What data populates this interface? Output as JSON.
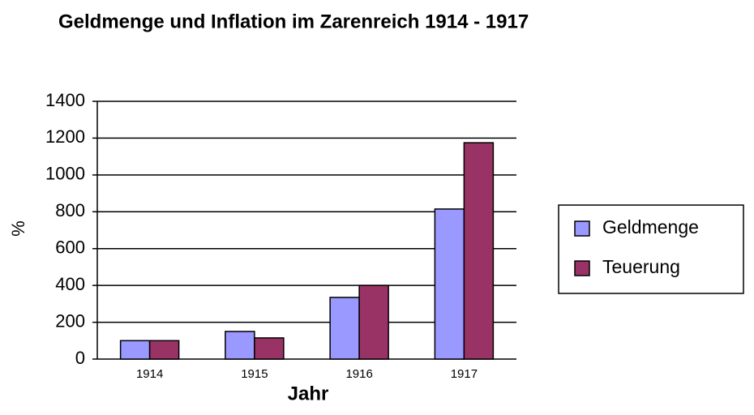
{
  "chart_data": {
    "type": "bar",
    "title": "Geldmenge und Inflation im Zarenreich 1914 - 1917",
    "x_label": "Jahr",
    "y_label": "%",
    "categories": [
      "1914",
      "1915",
      "1916",
      "1917"
    ],
    "series": [
      {
        "name": "Geldmenge",
        "color": "#9999ff",
        "values": [
          100,
          150,
          335,
          815
        ]
      },
      {
        "name": "Teuerung",
        "color": "#993366",
        "values": [
          100,
          115,
          400,
          1175
        ]
      }
    ],
    "ylim": [
      0,
      1400
    ],
    "yticks": [
      0,
      200,
      400,
      600,
      800,
      1000,
      1200,
      1400
    ],
    "grid": true,
    "legend": "right"
  }
}
